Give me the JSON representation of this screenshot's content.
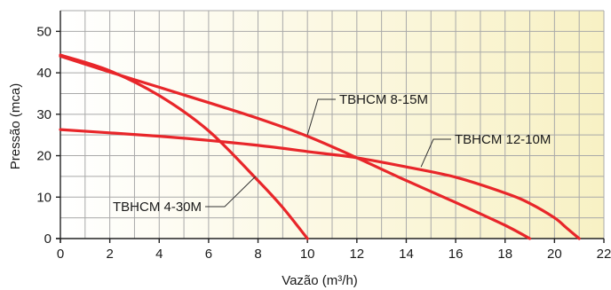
{
  "chart_data": {
    "type": "line",
    "xlabel": "Vazão (m³/h)",
    "ylabel": "Pressão (mca)",
    "xlim": [
      0,
      22
    ],
    "ylim": [
      0,
      55
    ],
    "x_ticks": [
      0,
      2,
      4,
      6,
      8,
      10,
      12,
      14,
      16,
      18,
      20,
      22
    ],
    "y_ticks": [
      0,
      10,
      20,
      30,
      40,
      50
    ],
    "grid": true,
    "colors": {
      "curve": "#e8262a",
      "bg_start": "#ffffff",
      "bg_end": "#f8f1c4"
    },
    "series": [
      {
        "name": "TBHCM 4-30M",
        "x": [
          0,
          2,
          4,
          6,
          8,
          9,
          10
        ],
        "y": [
          44.3,
          40.5,
          34.5,
          26,
          14,
          7.5,
          0
        ],
        "label_anchor": [
          7.9,
          15
        ]
      },
      {
        "name": "TBHCM 8-15M",
        "x": [
          0,
          2,
          4,
          6,
          8,
          10,
          12,
          14,
          16,
          18,
          19
        ],
        "y": [
          44,
          40.2,
          36.5,
          32.8,
          29,
          24.7,
          19.5,
          14,
          8.7,
          3.2,
          0
        ],
        "label_anchor": [
          10,
          25
        ]
      },
      {
        "name": "TBHCM 12-10M",
        "x": [
          0,
          2,
          4,
          6,
          8,
          10,
          12,
          14,
          16,
          18,
          19,
          20,
          20.5,
          21
        ],
        "y": [
          26.3,
          25.5,
          24.7,
          23.7,
          22.5,
          21,
          19.5,
          17.3,
          14.8,
          11,
          8.5,
          5,
          2.5,
          0
        ],
        "label_anchor": [
          14.6,
          17.3
        ]
      }
    ]
  }
}
